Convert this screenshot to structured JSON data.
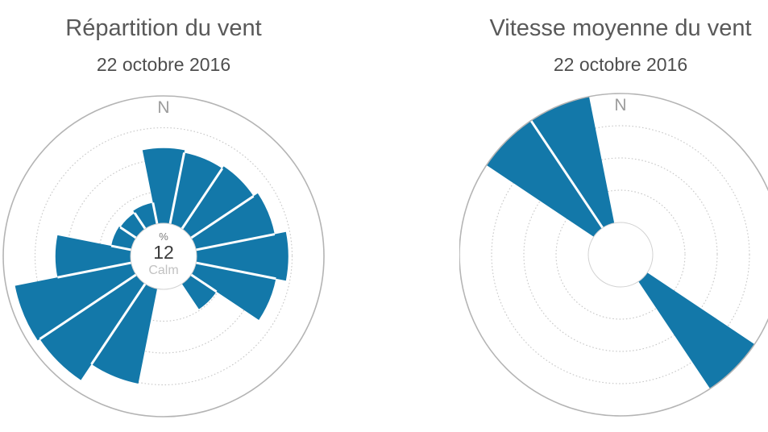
{
  "style": {
    "petal_color": "#1378a9",
    "axis_circle_color": "#b4b4b4",
    "gridline_color": "#c9c9c9",
    "hole_border_color": "#d2d2d2",
    "title_color": "#595959",
    "subtitle_color": "#4e4e4e",
    "north_label_color": "#9c9c9c",
    "calm_unit_color": "#7d7d7d",
    "calm_value_color": "#3a3a3a",
    "calm_label_color": "#c2c2c2",
    "background": "#ffffff"
  },
  "chart_data": [
    {
      "type": "windrose",
      "title": "Répartition du vent",
      "subtitle": "22 octobre 2016",
      "north_label": "N",
      "center_annotation": {
        "unit": "%",
        "value": "12",
        "label": "Calm"
      },
      "directions": [
        "N",
        "NNE",
        "NE",
        "ENE",
        "E",
        "ESE",
        "SE",
        "SSE",
        "S",
        "SSW",
        "SW",
        "WSW",
        "W",
        "WNW",
        "NW",
        "NNW"
      ],
      "values": [
        5.9,
        5.7,
        5.9,
        6.3,
        7.2,
        6.4,
        2.4,
        0,
        0,
        7.6,
        9.1,
        9.3,
        5.9,
        1.6,
        1.5,
        1.7
      ],
      "radial_max": 10,
      "radial_axis": {
        "unit": "%",
        "tick_labels_visible": false,
        "gridline_rings": 4,
        "gridline_style": "dotted",
        "values_estimated_from_gridlines": true,
        "calm_percent": 12
      },
      "legend_visible": false
    },
    {
      "type": "windrose",
      "title": "Vitesse moyenne du vent",
      "subtitle": "22 octobre 2016",
      "north_label": "N",
      "center_annotation": null,
      "directions": [
        "N",
        "NNE",
        "NE",
        "ENE",
        "E",
        "ESE",
        "SE",
        "SSE",
        "S",
        "SSW",
        "SW",
        "WSW",
        "W",
        "WNW",
        "NW",
        "NNW"
      ],
      "values": [
        0,
        0,
        0,
        0,
        0,
        0,
        1,
        0,
        0,
        0,
        0,
        0,
        0,
        0,
        1,
        1
      ],
      "radial_max": 1,
      "radial_axis": {
        "unit": "",
        "tick_labels_visible": false,
        "gridline_rings": 4,
        "gridline_style": "dotted",
        "values_estimated_from_gridlines": true,
        "note": "petals reach the outer axis circle (full scale); scale unlabeled"
      },
      "legend_visible": false
    }
  ]
}
